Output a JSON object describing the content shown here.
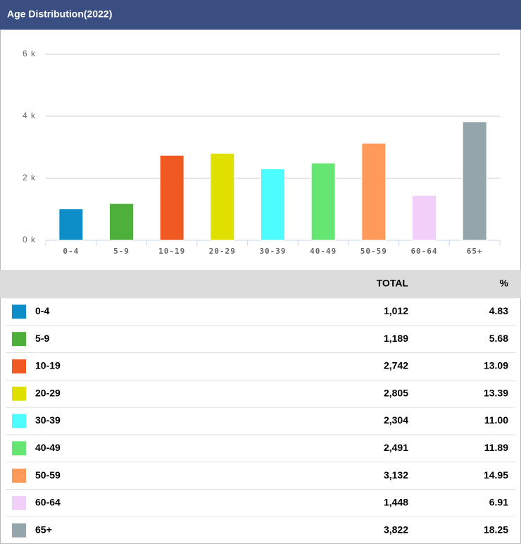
{
  "chart_data": {
    "type": "bar",
    "title": "Age Distribution(2022)",
    "categories": [
      "0-4",
      "5-9",
      "10-19",
      "20-29",
      "30-39",
      "40-49",
      "50-59",
      "60-64",
      "65+"
    ],
    "values": [
      1012,
      1189,
      2742,
      2805,
      2304,
      2491,
      3132,
      1448,
      3822
    ],
    "colors": [
      "#0e8ec8",
      "#4db03a",
      "#f05a22",
      "#dfe000",
      "#4dfcff",
      "#65e673",
      "#ff9a5a",
      "#f0d0f8",
      "#95a5ac"
    ],
    "ylim": [
      0,
      6000
    ],
    "yticks": [
      {
        "value": 0,
        "label": "0 k"
      },
      {
        "value": 2000,
        "label": "2 k"
      },
      {
        "value": 4000,
        "label": "4 k"
      },
      {
        "value": 6000,
        "label": "6 k"
      }
    ],
    "grid": true
  },
  "table": {
    "columns": [
      "TOTAL",
      "%"
    ],
    "rows": [
      [
        "1,012",
        "4.83"
      ],
      [
        "1,189",
        "5.68"
      ],
      [
        "2,742",
        "13.09"
      ],
      [
        "2,805",
        "13.39"
      ],
      [
        "2,304",
        "11.00"
      ],
      [
        "2,491",
        "11.89"
      ],
      [
        "3,132",
        "14.95"
      ],
      [
        "1,448",
        "6.91"
      ],
      [
        "3,822",
        "18.25"
      ]
    ]
  }
}
